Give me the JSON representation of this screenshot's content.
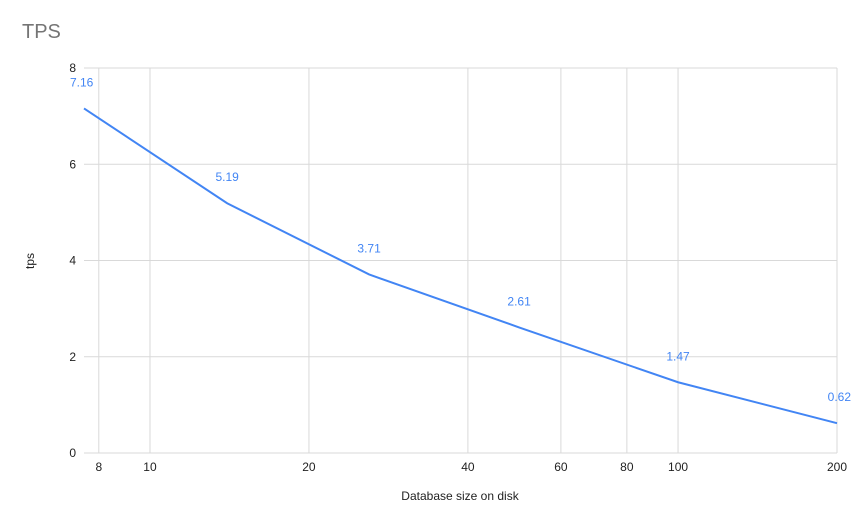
{
  "chart_data": {
    "type": "line",
    "title": "TPS",
    "xlabel": "Database size on disk",
    "ylabel": "tps",
    "x": [
      7.5,
      14,
      26,
      50,
      100,
      200
    ],
    "series": [
      {
        "name": "tps",
        "color": "#4285f4",
        "values": [
          7.16,
          5.19,
          3.71,
          2.61,
          1.47,
          0.62
        ]
      }
    ],
    "xscale": "log",
    "xlim": [
      7.5,
      200
    ],
    "xticks": [
      8,
      10,
      20,
      40,
      60,
      80,
      100,
      200
    ],
    "ylim": [
      0,
      8
    ],
    "yticks": [
      0,
      2,
      4,
      6,
      8
    ],
    "grid": true,
    "data_labels": true
  }
}
